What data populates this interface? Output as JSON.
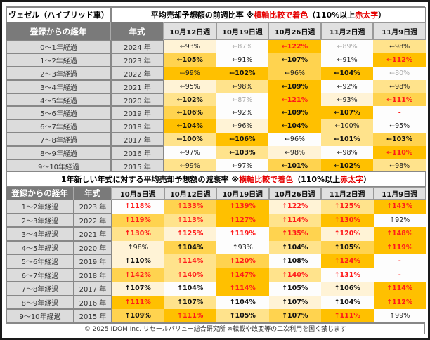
{
  "table1": {
    "corner": "ヴェゼル（ハイブリッド車）",
    "title_a": "平均売却予想額の前週比率 ※",
    "title_red": "横軸比較で着色",
    "title_b": "（110%以上 ",
    "title_red2": "赤太字",
    "title_c": "）",
    "col_age": "登録からの経年",
    "col_year": "年式",
    "weeks": [
      "10月12日週",
      "10月19日週",
      "10月26日週",
      "11月2日週",
      "11月9日週"
    ],
    "rows": [
      {
        "age": "0～1年経過",
        "year": "2024 年",
        "cells": [
          [
            "←93%",
            1,
            "n"
          ],
          [
            "←87%",
            0,
            "g"
          ],
          [
            "←122%",
            4,
            "r"
          ],
          [
            "←89%",
            0,
            "g"
          ],
          [
            "←98%",
            2,
            "n"
          ]
        ]
      },
      {
        "age": "1～2年経過",
        "year": "2023 年",
        "cells": [
          [
            "←105%",
            3,
            "b"
          ],
          [
            "←91%",
            0,
            "n"
          ],
          [
            "←107%",
            3,
            "b"
          ],
          [
            "←91%",
            0,
            "n"
          ],
          [
            "←112%",
            4,
            "r"
          ]
        ]
      },
      {
        "age": "2～3年経過",
        "year": "2022 年",
        "cells": [
          [
            "←99%",
            4,
            "n"
          ],
          [
            "←102%",
            4,
            "b"
          ],
          [
            "←96%",
            3,
            "n"
          ],
          [
            "←104%",
            4,
            "b"
          ],
          [
            "←80%",
            0,
            "g"
          ]
        ]
      },
      {
        "age": "3～4年経過",
        "year": "2021 年",
        "cells": [
          [
            "←95%",
            1,
            "n"
          ],
          [
            "←98%",
            2,
            "n"
          ],
          [
            "←109%",
            4,
            "b"
          ],
          [
            "←92%",
            0,
            "n"
          ],
          [
            "←98%",
            2,
            "n"
          ]
        ]
      },
      {
        "age": "4～5年経過",
        "year": "2020 年",
        "cells": [
          [
            "←102%",
            2,
            "b"
          ],
          [
            "←87%",
            0,
            "g"
          ],
          [
            "←121%",
            4,
            "r"
          ],
          [
            "←93%",
            1,
            "n"
          ],
          [
            "←111%",
            3,
            "r"
          ]
        ]
      },
      {
        "age": "5～6年経過",
        "year": "2019 年",
        "cells": [
          [
            "←106%",
            3,
            "b"
          ],
          [
            "←92%",
            0,
            "n"
          ],
          [
            "←109%",
            4,
            "b"
          ],
          [
            "←107%",
            4,
            "b"
          ],
          [
            "-",
            0,
            "r"
          ]
        ]
      },
      {
        "age": "6～7年経過",
        "year": "2018 年",
        "cells": [
          [
            "←104%",
            4,
            "b"
          ],
          [
            "←96%",
            1,
            "n"
          ],
          [
            "←104%",
            4,
            "b"
          ],
          [
            "←100%",
            2,
            "n"
          ],
          [
            "←95%",
            0,
            "n"
          ]
        ]
      },
      {
        "age": "7～8年経過",
        "year": "2017 年",
        "cells": [
          [
            "←100%",
            2,
            "b"
          ],
          [
            "←106%",
            4,
            "b"
          ],
          [
            "←96%",
            0,
            "n"
          ],
          [
            "←101%",
            2,
            "b"
          ],
          [
            "←103%",
            3,
            "b"
          ]
        ]
      },
      {
        "age": "8～9年経過",
        "year": "2016 年",
        "cells": [
          [
            "←97%",
            0,
            "n"
          ],
          [
            "←103%",
            2,
            "b"
          ],
          [
            "←98%",
            1,
            "n"
          ],
          [
            "←98%",
            0,
            "n"
          ],
          [
            "←110%",
            4,
            "r"
          ]
        ]
      },
      {
        "age": "9～10年経過",
        "year": "2015 年",
        "cells": [
          [
            "←99%",
            2,
            "n"
          ],
          [
            "←97%",
            0,
            "n"
          ],
          [
            "←101%",
            3,
            "b"
          ],
          [
            "←102%",
            4,
            "b"
          ],
          [
            "←98%",
            2,
            "n"
          ]
        ]
      }
    ]
  },
  "table2": {
    "title_a": "1年新しい年式に対する平均売却予想額の減衰率 ※",
    "title_red": "横軸比較で着色",
    "title_b": "（110%以上 ",
    "title_red2": "赤太字",
    "title_c": "）",
    "col_age": "登録からの経年",
    "col_year": "年式",
    "weeks": [
      "10月5日週",
      "10月12日週",
      "10月19日週",
      "10月26日週",
      "11月2日週",
      "11月9日週"
    ],
    "rows": [
      {
        "age": "1～2年経過",
        "year": "2023 年",
        "cells": [
          [
            "↑118%",
            0,
            "r"
          ],
          [
            "↑133%",
            3,
            "r"
          ],
          [
            "↑139%",
            4,
            "r"
          ],
          [
            "↑122%",
            1,
            "r"
          ],
          [
            "↑125%",
            2,
            "r"
          ],
          [
            "↑143%",
            4,
            "r"
          ]
        ]
      },
      {
        "age": "2～3年経過",
        "year": "2022 年",
        "cells": [
          [
            "↑119%",
            3,
            "r"
          ],
          [
            "↑113%",
            2,
            "r"
          ],
          [
            "↑127%",
            4,
            "r"
          ],
          [
            "↑114%",
            2,
            "r"
          ],
          [
            "↑130%",
            4,
            "r"
          ],
          [
            "↑92%",
            0,
            "n"
          ]
        ]
      },
      {
        "age": "3～4年経過",
        "year": "2021 年",
        "cells": [
          [
            "↑130%",
            2,
            "r"
          ],
          [
            "↑125%",
            1,
            "r"
          ],
          [
            "↑119%",
            0,
            "r"
          ],
          [
            "↑135%",
            3,
            "r"
          ],
          [
            "↑120%",
            1,
            "r"
          ],
          [
            "↑148%",
            4,
            "r"
          ]
        ]
      },
      {
        "age": "4～5年経過",
        "year": "2020 年",
        "cells": [
          [
            "↑98%",
            1,
            "n"
          ],
          [
            "↑104%",
            3,
            "b"
          ],
          [
            "↑93%",
            0,
            "n"
          ],
          [
            "↑104%",
            2,
            "b"
          ],
          [
            "↑105%",
            3,
            "b"
          ],
          [
            "↑119%",
            4,
            "r"
          ]
        ]
      },
      {
        "age": "5～6年経過",
        "year": "2019 年",
        "cells": [
          [
            "↑110%",
            1,
            "b"
          ],
          [
            "↑114%",
            2,
            "r"
          ],
          [
            "↑120%",
            3,
            "r"
          ],
          [
            "↑108%",
            0,
            "b"
          ],
          [
            "↑124%",
            4,
            "r"
          ],
          [
            "-",
            0,
            "r"
          ]
        ]
      },
      {
        "age": "6～7年経過",
        "year": "2018 年",
        "cells": [
          [
            "↑142%",
            3,
            "r"
          ],
          [
            "↑140%",
            2,
            "r"
          ],
          [
            "↑147%",
            4,
            "r"
          ],
          [
            "↑140%",
            2,
            "r"
          ],
          [
            "↑131%",
            0,
            "r"
          ],
          [
            "-",
            0,
            "r"
          ]
        ]
      },
      {
        "age": "7～8年経過",
        "year": "2017 年",
        "cells": [
          [
            "↑107%",
            1,
            "b"
          ],
          [
            "↑104%",
            0,
            "b"
          ],
          [
            "↑114%",
            4,
            "r"
          ],
          [
            "↑105%",
            0,
            "b"
          ],
          [
            "↑106%",
            1,
            "b"
          ],
          [
            "↑114%",
            4,
            "r"
          ]
        ]
      },
      {
        "age": "8～9年経過",
        "year": "2016 年",
        "cells": [
          [
            "↑111%",
            4,
            "r"
          ],
          [
            "↑107%",
            2,
            "b"
          ],
          [
            "↑104%",
            0,
            "b"
          ],
          [
            "↑107%",
            1,
            "b"
          ],
          [
            "↑104%",
            0,
            "b"
          ],
          [
            "↑112%",
            4,
            "r"
          ]
        ]
      },
      {
        "age": "9～10年経過",
        "year": "2015 年",
        "cells": [
          [
            "↑109%",
            3,
            "b"
          ],
          [
            "↑111%",
            4,
            "r"
          ],
          [
            "↑105%",
            2,
            "b"
          ],
          [
            "↑107%",
            3,
            "b"
          ],
          [
            "↑111%",
            4,
            "r"
          ],
          [
            "↑99%",
            0,
            "n"
          ]
        ]
      }
    ]
  },
  "footer": "© 2025 IDOM Inc. リセールバリュー総合研究所 ※転載や改変等の二次利用を固く禁じます"
}
